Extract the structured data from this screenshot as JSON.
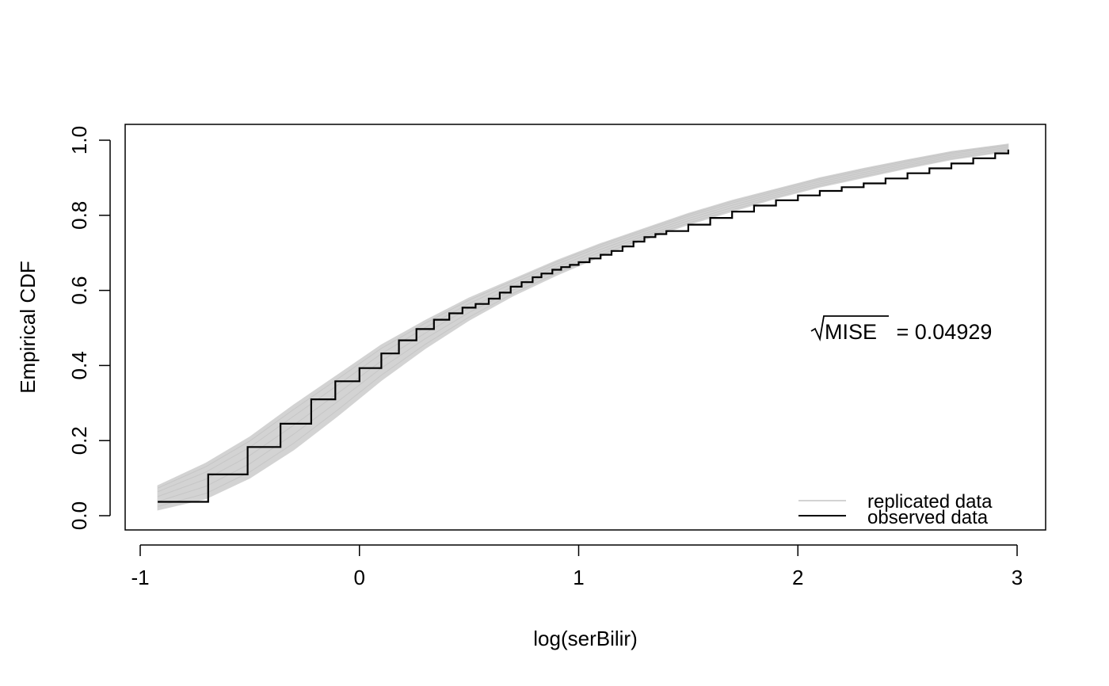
{
  "chart_data": {
    "type": "line",
    "xlabel": "log(serBilir)",
    "ylabel": "Empirical CDF",
    "xlim": [
      -1,
      3
    ],
    "ylim": [
      0,
      1
    ],
    "x_ticks": [
      "-1",
      "0",
      "1",
      "2",
      "3"
    ],
    "y_ticks": [
      "0.0",
      "0.2",
      "0.4",
      "0.6",
      "0.8",
      "1.0"
    ],
    "grid": false,
    "legend": {
      "position": "bottom-right",
      "entries": [
        {
          "label": "replicated data",
          "color": "#d3d3d3"
        },
        {
          "label": "observed data",
          "color": "#000000"
        }
      ]
    },
    "annotation": {
      "label": "MISE",
      "text": " = 0.04929",
      "position": "right-middle"
    },
    "series": [
      {
        "name": "observed data",
        "color": "#000000",
        "style": "step",
        "x": [
          -0.92,
          -0.69,
          -0.51,
          -0.36,
          -0.22,
          -0.11,
          0.0,
          0.1,
          0.18,
          0.26,
          0.34,
          0.41,
          0.47,
          0.53,
          0.59,
          0.64,
          0.69,
          0.74,
          0.79,
          0.83,
          0.88,
          0.92,
          0.96,
          1.0,
          1.05,
          1.1,
          1.15,
          1.2,
          1.25,
          1.3,
          1.35,
          1.4,
          1.5,
          1.6,
          1.7,
          1.8,
          1.9,
          2.0,
          2.1,
          2.2,
          2.3,
          2.4,
          2.5,
          2.6,
          2.7,
          2.8,
          2.9,
          2.96
        ],
        "y": [
          0.037,
          0.11,
          0.183,
          0.245,
          0.31,
          0.358,
          0.393,
          0.432,
          0.467,
          0.497,
          0.522,
          0.539,
          0.554,
          0.564,
          0.578,
          0.594,
          0.61,
          0.622,
          0.635,
          0.645,
          0.655,
          0.662,
          0.668,
          0.675,
          0.685,
          0.695,
          0.705,
          0.717,
          0.73,
          0.742,
          0.75,
          0.758,
          0.775,
          0.793,
          0.81,
          0.826,
          0.84,
          0.853,
          0.865,
          0.875,
          0.885,
          0.898,
          0.912,
          0.925,
          0.938,
          0.952,
          0.965,
          0.975
        ]
      },
      {
        "name": "replicated data",
        "color": "#d3d3d3",
        "style": "band",
        "x": [
          -0.92,
          -0.7,
          -0.5,
          -0.3,
          -0.1,
          0.1,
          0.3,
          0.5,
          0.7,
          0.9,
          1.1,
          1.3,
          1.5,
          1.7,
          1.9,
          2.1,
          2.3,
          2.5,
          2.7,
          2.96
        ],
        "y_lower": [
          0.015,
          0.045,
          0.1,
          0.175,
          0.265,
          0.36,
          0.445,
          0.52,
          0.585,
          0.64,
          0.69,
          0.735,
          0.775,
          0.81,
          0.845,
          0.875,
          0.9,
          0.925,
          0.948,
          0.97
        ],
        "y_upper": [
          0.08,
          0.14,
          0.21,
          0.295,
          0.375,
          0.455,
          0.52,
          0.58,
          0.63,
          0.68,
          0.725,
          0.765,
          0.805,
          0.84,
          0.87,
          0.9,
          0.925,
          0.948,
          0.97,
          0.99
        ]
      }
    ]
  }
}
